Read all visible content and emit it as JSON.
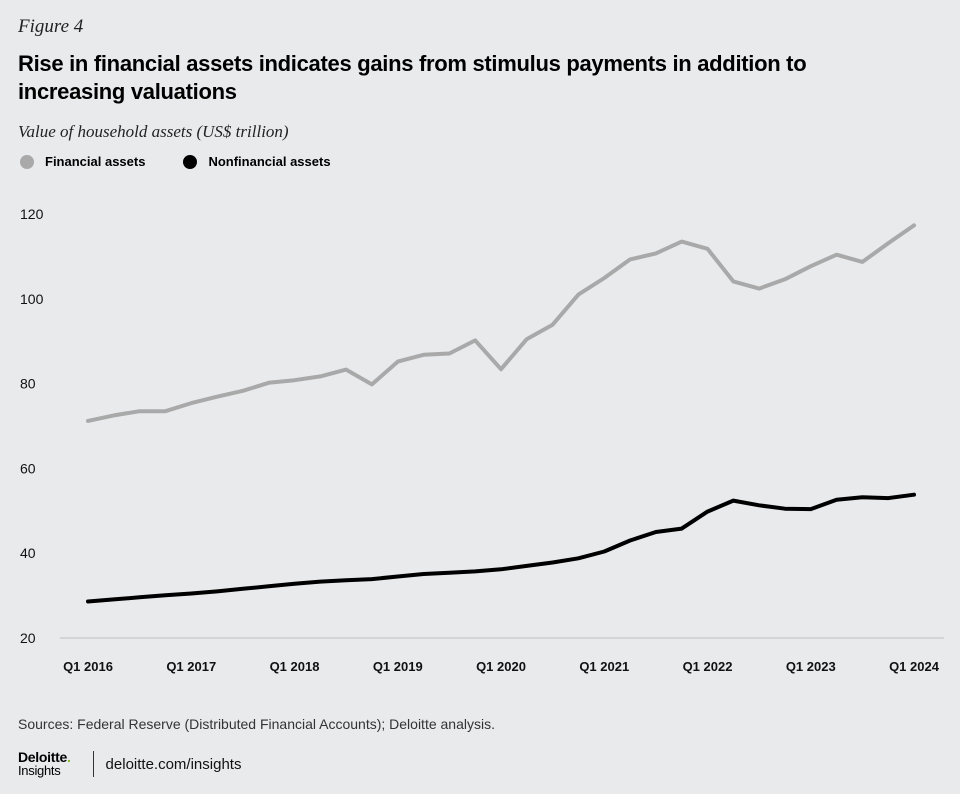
{
  "figure_label": "Figure 4",
  "colors": {
    "background": "#e9eaeb",
    "financial": "#a9a9a9",
    "nonfinancial": "#000000",
    "axis": "#bdbdbd",
    "brand_accent": "#86bc25"
  },
  "chart_data": {
    "type": "line",
    "title": "Rise in financial assets indicates gains from stimulus payments in addition to increasing valuations",
    "ylabel": "Value of household assets (US$ trillion)",
    "xlabel": "",
    "ylim": [
      20,
      120
    ],
    "yticks": [
      "20",
      "40",
      "60",
      "80",
      "100",
      "120"
    ],
    "ytick_values": [
      20,
      40,
      60,
      80,
      100,
      120
    ],
    "xtick_labels": [
      "Q1 2016",
      "Q1 2017",
      "Q1 2018",
      "Q1 2019",
      "Q1 2020",
      "Q1 2021",
      "Q1 2022",
      "Q1 2023",
      "Q1 2024"
    ],
    "xtick_indices": [
      0,
      4,
      8,
      12,
      16,
      20,
      24,
      28,
      32
    ],
    "x_count": 33,
    "grid": false,
    "legend_position": "top-left",
    "series": [
      {
        "name": "Financial assets",
        "values": [
          71.2,
          72.5,
          73.5,
          73.5,
          75.4,
          76.9,
          78.3,
          80.2,
          80.8,
          81.7,
          83.3,
          79.8,
          85.2,
          86.8,
          87.1,
          90.2,
          83.4,
          90.5,
          93.9,
          101.0,
          104.9,
          109.3,
          110.7,
          113.5,
          111.8,
          104.1,
          102.4,
          104.6,
          107.7,
          110.4,
          108.7,
          113.1,
          117.3
        ]
      },
      {
        "name": "Nonfinancial assets",
        "values": [
          28.6,
          29.1,
          29.6,
          30.1,
          30.5,
          31.0,
          31.6,
          32.2,
          32.8,
          33.3,
          33.6,
          33.9,
          34.5,
          35.1,
          35.4,
          35.7,
          36.2,
          37.0,
          37.8,
          38.8,
          40.4,
          43.0,
          45.0,
          45.8,
          49.8,
          52.4,
          51.3,
          50.5,
          50.4,
          52.6,
          53.2,
          53.0,
          53.8
        ]
      }
    ]
  },
  "sources": "Sources: Federal Reserve (Distributed Financial Accounts); Deloitte analysis.",
  "brand": {
    "name": "Deloitte",
    "dot": ".",
    "sub": "Insights",
    "url": "deloitte.com/insights"
  }
}
